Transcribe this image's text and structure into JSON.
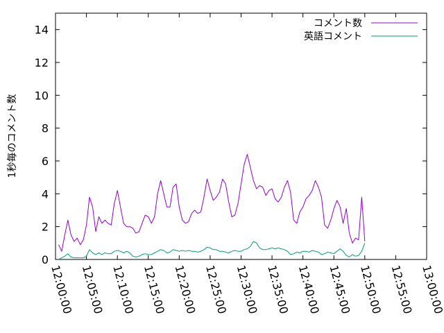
{
  "chart_data": {
    "type": "line",
    "title": "",
    "xlabel": "",
    "ylabel": "1秒毎のコメント数",
    "ylim": [
      0,
      15
    ],
    "yticks": [
      0,
      2,
      4,
      6,
      8,
      10,
      12,
      14
    ],
    "xlim": [
      "12:00:00",
      "13:00:00"
    ],
    "xticks": [
      "12:00:00",
      "12:05:00",
      "12:10:00",
      "12:15:00",
      "12:20:00",
      "12:25:00",
      "12:30:00",
      "12:35:00",
      "12:40:00",
      "12:45:00",
      "12:50:00",
      "12:55:00",
      "13:00:00"
    ],
    "grid": false,
    "legend_position": "top-right",
    "series": [
      {
        "name": "コメント数",
        "color": "#9400d3",
        "points": [
          [
            "12:00:30",
            0.9
          ],
          [
            "12:01:00",
            0.5
          ],
          [
            "12:01:30",
            1.5
          ],
          [
            "12:02:00",
            2.4
          ],
          [
            "12:02:30",
            1.5
          ],
          [
            "12:03:00",
            1.1
          ],
          [
            "12:03:30",
            1.3
          ],
          [
            "12:04:00",
            0.9
          ],
          [
            "12:04:30",
            1.2
          ],
          [
            "12:05:00",
            2.1
          ],
          [
            "12:05:30",
            3.8
          ],
          [
            "12:06:00",
            3.2
          ],
          [
            "12:06:30",
            1.7
          ],
          [
            "12:07:00",
            2.6
          ],
          [
            "12:07:30",
            2.2
          ],
          [
            "12:08:00",
            2.4
          ],
          [
            "12:08:30",
            2.2
          ],
          [
            "12:09:00",
            2.1
          ],
          [
            "12:09:30",
            3.4
          ],
          [
            "12:10:00",
            4.2
          ],
          [
            "12:10:30",
            3.2
          ],
          [
            "12:11:00",
            2.2
          ],
          [
            "12:11:30",
            2.0
          ],
          [
            "12:12:00",
            2.0
          ],
          [
            "12:12:30",
            1.9
          ],
          [
            "12:13:00",
            1.6
          ],
          [
            "12:13:30",
            1.7
          ],
          [
            "12:14:00",
            2.2
          ],
          [
            "12:14:30",
            2.7
          ],
          [
            "12:15:00",
            2.6
          ],
          [
            "12:15:30",
            2.2
          ],
          [
            "12:16:00",
            2.6
          ],
          [
            "12:16:30",
            4.0
          ],
          [
            "12:17:00",
            4.8
          ],
          [
            "12:17:30",
            4.0
          ],
          [
            "12:18:00",
            3.2
          ],
          [
            "12:18:30",
            3.2
          ],
          [
            "12:19:00",
            4.4
          ],
          [
            "12:19:30",
            4.6
          ],
          [
            "12:20:00",
            3.2
          ],
          [
            "12:20:30",
            2.4
          ],
          [
            "12:21:00",
            2.2
          ],
          [
            "12:21:30",
            2.3
          ],
          [
            "12:22:00",
            2.8
          ],
          [
            "12:22:30",
            3.0
          ],
          [
            "12:23:00",
            2.8
          ],
          [
            "12:23:30",
            2.9
          ],
          [
            "12:24:00",
            3.8
          ],
          [
            "12:24:30",
            4.9
          ],
          [
            "12:25:00",
            4.2
          ],
          [
            "12:25:30",
            3.6
          ],
          [
            "12:26:00",
            3.8
          ],
          [
            "12:26:30",
            4.1
          ],
          [
            "12:27:00",
            4.9
          ],
          [
            "12:27:30",
            4.6
          ],
          [
            "12:28:00",
            3.5
          ],
          [
            "12:28:30",
            2.6
          ],
          [
            "12:29:00",
            2.7
          ],
          [
            "12:29:30",
            3.4
          ],
          [
            "12:30:00",
            4.6
          ],
          [
            "12:30:30",
            5.8
          ],
          [
            "12:31:00",
            6.4
          ],
          [
            "12:31:30",
            5.6
          ],
          [
            "12:32:00",
            4.8
          ],
          [
            "12:32:30",
            4.3
          ],
          [
            "12:33:00",
            4.5
          ],
          [
            "12:33:30",
            4.4
          ],
          [
            "12:34:00",
            3.9
          ],
          [
            "12:34:30",
            4.2
          ],
          [
            "12:35:00",
            4.3
          ],
          [
            "12:35:30",
            3.7
          ],
          [
            "12:36:00",
            3.5
          ],
          [
            "12:36:30",
            3.8
          ],
          [
            "12:37:00",
            4.4
          ],
          [
            "12:37:30",
            4.8
          ],
          [
            "12:38:00",
            4.1
          ],
          [
            "12:38:30",
            2.4
          ],
          [
            "12:39:00",
            2.2
          ],
          [
            "12:39:30",
            2.9
          ],
          [
            "12:40:00",
            3.2
          ],
          [
            "12:40:30",
            3.7
          ],
          [
            "12:41:00",
            3.9
          ],
          [
            "12:41:30",
            4.2
          ],
          [
            "12:42:00",
            4.8
          ],
          [
            "12:42:30",
            4.4
          ],
          [
            "12:43:00",
            3.8
          ],
          [
            "12:43:30",
            2.1
          ],
          [
            "12:44:00",
            1.9
          ],
          [
            "12:44:30",
            2.4
          ],
          [
            "12:45:00",
            3.1
          ],
          [
            "12:45:30",
            3.6
          ],
          [
            "12:46:00",
            3.2
          ],
          [
            "12:46:30",
            2.2
          ],
          [
            "12:47:00",
            3.1
          ],
          [
            "12:47:30",
            1.6
          ],
          [
            "12:48:00",
            1.0
          ],
          [
            "12:48:30",
            1.3
          ],
          [
            "12:49:00",
            1.2
          ],
          [
            "12:49:30",
            3.8
          ],
          [
            "12:50:00",
            1.1
          ]
        ]
      },
      {
        "name": "英語コメント",
        "color": "#009e73",
        "points": [
          [
            "12:00:30",
            0.0
          ],
          [
            "12:01:00",
            0.1
          ],
          [
            "12:01:30",
            0.2
          ],
          [
            "12:02:00",
            0.35
          ],
          [
            "12:02:30",
            0.15
          ],
          [
            "12:03:00",
            0.1
          ],
          [
            "12:03:30",
            0.1
          ],
          [
            "12:04:00",
            0.1
          ],
          [
            "12:04:30",
            0.1
          ],
          [
            "12:05:00",
            0.2
          ],
          [
            "12:05:30",
            0.6
          ],
          [
            "12:06:00",
            0.4
          ],
          [
            "12:06:30",
            0.3
          ],
          [
            "12:07:00",
            0.4
          ],
          [
            "12:07:30",
            0.3
          ],
          [
            "12:08:00",
            0.4
          ],
          [
            "12:08:30",
            0.35
          ],
          [
            "12:09:00",
            0.35
          ],
          [
            "12:09:30",
            0.5
          ],
          [
            "12:10:00",
            0.55
          ],
          [
            "12:10:30",
            0.5
          ],
          [
            "12:11:00",
            0.4
          ],
          [
            "12:11:30",
            0.5
          ],
          [
            "12:12:00",
            0.4
          ],
          [
            "12:12:30",
            0.2
          ],
          [
            "12:13:00",
            0.15
          ],
          [
            "12:13:30",
            0.2
          ],
          [
            "12:14:00",
            0.3
          ],
          [
            "12:14:30",
            0.35
          ],
          [
            "12:15:00",
            0.3
          ],
          [
            "12:15:30",
            0.3
          ],
          [
            "12:16:00",
            0.4
          ],
          [
            "12:16:30",
            0.5
          ],
          [
            "12:17:00",
            0.6
          ],
          [
            "12:17:30",
            0.55
          ],
          [
            "12:18:00",
            0.4
          ],
          [
            "12:18:30",
            0.45
          ],
          [
            "12:19:00",
            0.6
          ],
          [
            "12:19:30",
            0.55
          ],
          [
            "12:20:00",
            0.5
          ],
          [
            "12:20:30",
            0.55
          ],
          [
            "12:21:00",
            0.5
          ],
          [
            "12:21:30",
            0.55
          ],
          [
            "12:22:00",
            0.5
          ],
          [
            "12:22:30",
            0.5
          ],
          [
            "12:23:00",
            0.45
          ],
          [
            "12:23:30",
            0.5
          ],
          [
            "12:24:00",
            0.6
          ],
          [
            "12:24:30",
            0.75
          ],
          [
            "12:25:00",
            0.7
          ],
          [
            "12:25:30",
            0.6
          ],
          [
            "12:26:00",
            0.6
          ],
          [
            "12:26:30",
            0.5
          ],
          [
            "12:27:00",
            0.5
          ],
          [
            "12:27:30",
            0.45
          ],
          [
            "12:28:00",
            0.4
          ],
          [
            "12:28:30",
            0.5
          ],
          [
            "12:29:00",
            0.55
          ],
          [
            "12:29:30",
            0.5
          ],
          [
            "12:30:00",
            0.5
          ],
          [
            "12:30:30",
            0.6
          ],
          [
            "12:31:00",
            0.65
          ],
          [
            "12:31:30",
            0.8
          ],
          [
            "12:32:00",
            1.1
          ],
          [
            "12:32:30",
            1.0
          ],
          [
            "12:33:00",
            0.7
          ],
          [
            "12:33:30",
            0.6
          ],
          [
            "12:34:00",
            0.6
          ],
          [
            "12:34:30",
            0.65
          ],
          [
            "12:35:00",
            0.7
          ],
          [
            "12:35:30",
            0.65
          ],
          [
            "12:36:00",
            0.7
          ],
          [
            "12:36:30",
            0.65
          ],
          [
            "12:37:00",
            0.6
          ],
          [
            "12:37:30",
            0.5
          ],
          [
            "12:38:00",
            0.3
          ],
          [
            "12:38:30",
            0.35
          ],
          [
            "12:39:00",
            0.45
          ],
          [
            "12:39:30",
            0.4
          ],
          [
            "12:40:00",
            0.5
          ],
          [
            "12:40:30",
            0.5
          ],
          [
            "12:41:00",
            0.45
          ],
          [
            "12:41:30",
            0.55
          ],
          [
            "12:42:00",
            0.5
          ],
          [
            "12:42:30",
            0.45
          ],
          [
            "12:43:00",
            0.3
          ],
          [
            "12:43:30",
            0.35
          ],
          [
            "12:44:00",
            0.45
          ],
          [
            "12:44:30",
            0.4
          ],
          [
            "12:45:00",
            0.35
          ],
          [
            "12:45:30",
            0.5
          ],
          [
            "12:46:00",
            0.65
          ],
          [
            "12:46:30",
            0.5
          ],
          [
            "12:47:00",
            0.25
          ],
          [
            "12:47:30",
            0.15
          ],
          [
            "12:48:00",
            0.3
          ],
          [
            "12:48:30",
            0.2
          ],
          [
            "12:49:00",
            0.25
          ],
          [
            "12:49:30",
            0.5
          ],
          [
            "12:50:00",
            1.0
          ]
        ]
      }
    ]
  }
}
